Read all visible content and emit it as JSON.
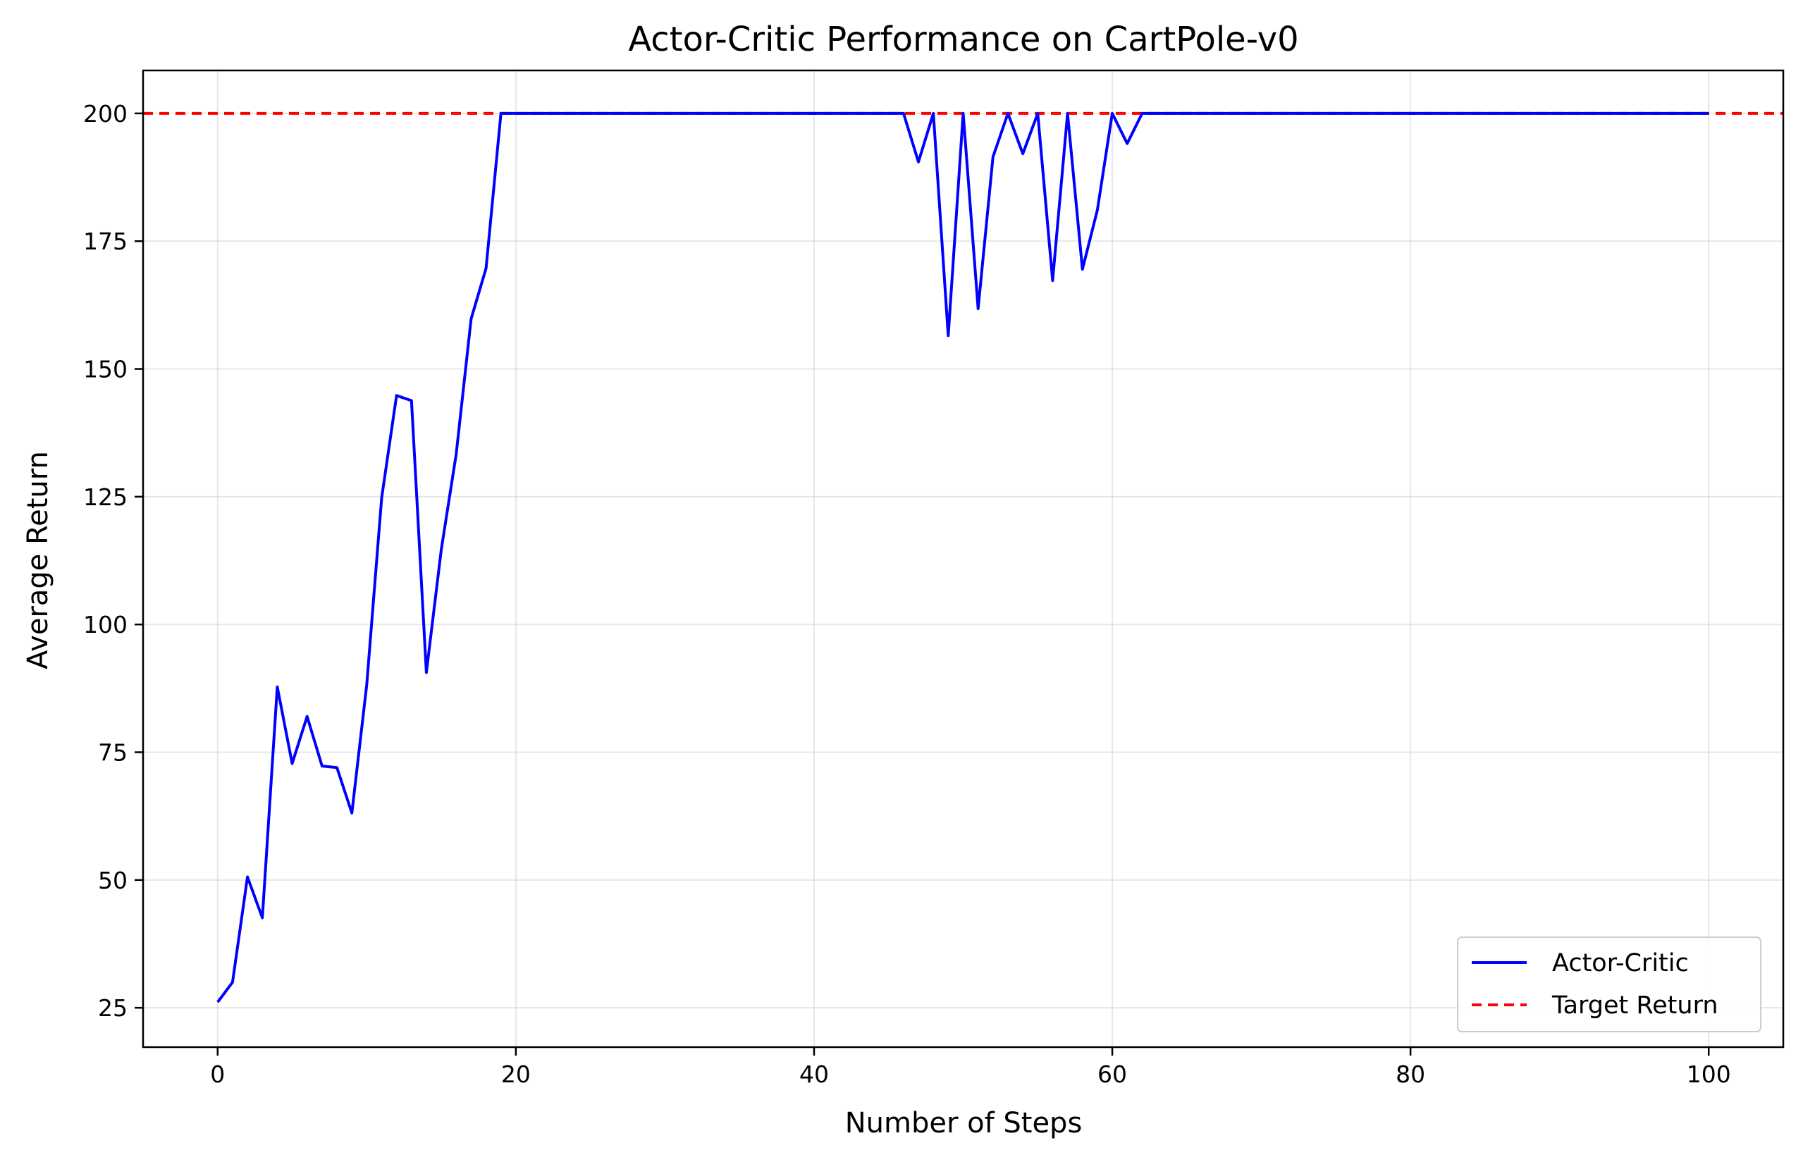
{
  "chart_data": {
    "type": "line",
    "title": "Actor-Critic Performance on CartPole-v0",
    "xlabel": "Number of Steps",
    "ylabel": "Average Return",
    "xlim": [
      -5,
      105
    ],
    "ylim": [
      17.3,
      208.4
    ],
    "xticks": [
      0,
      20,
      40,
      60,
      80,
      100
    ],
    "yticks": [
      25,
      50,
      75,
      100,
      125,
      150,
      175,
      200
    ],
    "grid": true,
    "legend_position": "bottom-right",
    "series": [
      {
        "name": "Actor-Critic",
        "color": "#0000ff",
        "style": "solid",
        "x": [
          0,
          1,
          2,
          3,
          4,
          5,
          6,
          7,
          8,
          9,
          10,
          11,
          12,
          13,
          14,
          15,
          16,
          17,
          18,
          19,
          20,
          21,
          22,
          23,
          24,
          25,
          26,
          27,
          28,
          29,
          30,
          31,
          32,
          33,
          34,
          35,
          36,
          37,
          38,
          39,
          40,
          41,
          42,
          43,
          44,
          45,
          46,
          47,
          48,
          49,
          50,
          51,
          52,
          53,
          54,
          55,
          56,
          57,
          58,
          59,
          60,
          61,
          62,
          63,
          64,
          65,
          66,
          67,
          68,
          69,
          70,
          71,
          72,
          73,
          74,
          75,
          76,
          77,
          78,
          79,
          80,
          81,
          82,
          83,
          84,
          85,
          86,
          87,
          88,
          89,
          90,
          91,
          92,
          93,
          94,
          95,
          96,
          97,
          98,
          99,
          100
        ],
        "y": [
          26.1,
          30,
          50.6,
          42.6,
          87.8,
          72.8,
          82,
          72.3,
          72,
          63.1,
          88.2,
          124.8,
          144.8,
          143.8,
          90.6,
          114.7,
          133.3,
          159.8,
          169.7,
          200,
          200,
          200,
          200,
          200,
          200,
          200,
          200,
          200,
          200,
          200,
          200,
          200,
          200,
          200,
          200,
          200,
          200,
          200,
          200,
          200,
          200,
          200,
          200,
          200,
          200,
          200,
          200,
          190.5,
          200,
          156.5,
          200,
          161.8,
          191.5,
          200,
          192.1,
          200,
          167.3,
          200,
          169.5,
          181.1,
          200,
          194.1,
          200,
          200,
          200,
          200,
          200,
          200,
          200,
          200,
          200,
          200,
          200,
          200,
          200,
          200,
          200,
          200,
          200,
          200,
          200,
          200,
          200,
          200,
          200,
          200,
          200,
          200,
          200,
          200,
          200,
          200,
          200,
          200,
          200,
          200,
          200,
          200,
          200,
          200,
          200
        ]
      },
      {
        "name": "Target Return",
        "color": "#ff0000",
        "style": "dashed",
        "y_constant": 200
      }
    ]
  }
}
